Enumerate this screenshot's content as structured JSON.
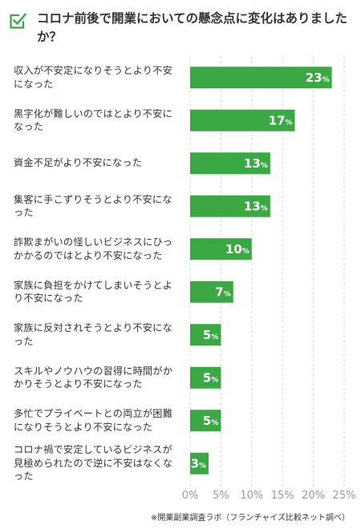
{
  "header": {
    "title": "コロナ前後で開業においての懸念点に変化はありましたか？",
    "icon": "checkbox-icon",
    "accent": "#3aa843"
  },
  "chart_data": {
    "type": "bar",
    "orientation": "horizontal",
    "categories": [
      "収入が不安定になりそうとより不安になった",
      "黒字化が難しいのではとより不安になった",
      "資金不足がより不安になった",
      "集客に手こずりそうとより不安になった",
      "詐欺まがいの怪しいビジネスにひっかかるのではとより不安になった",
      "家族に負担をかけてしまいそうとより不安になった",
      "家族に反対されそうとより不安になった",
      "スキルやノウハウの習得に時間がかかりそうとより不安になった",
      "多忙でプライベートとの両立が困難になりそうとより不安になった",
      "コロナ禍で安定しているビジネスが見極められたので逆に不安はなくなった"
    ],
    "values": [
      23,
      17,
      13,
      13,
      10,
      7,
      5,
      5,
      5,
      3
    ],
    "unit": "%",
    "xlim": [
      0,
      25
    ],
    "ticks": [
      0,
      5,
      10,
      15,
      20,
      25
    ],
    "tick_labels": [
      "0%",
      "5%",
      "10%",
      "15%",
      "20%",
      "25%"
    ],
    "grid": "vertical dashed",
    "bar_color": "#3aa843",
    "label_color": "#ffffff",
    "grid_color": "#d9d9d9"
  },
  "footer": {
    "note": "※開業副業調査ラボ（フランチャイズ比較ネット調べ）"
  }
}
